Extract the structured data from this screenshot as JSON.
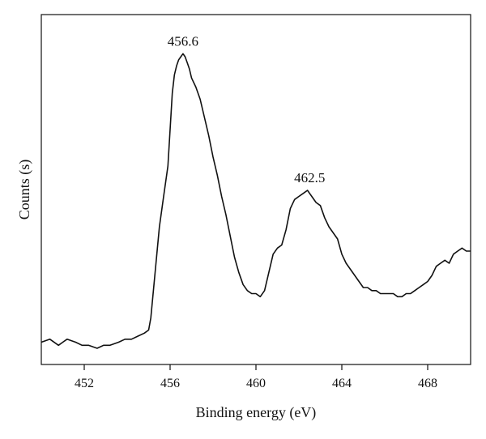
{
  "chart_data": {
    "type": "line",
    "title": "",
    "xlabel": "Binding energy (eV)",
    "ylabel": "Counts (s)",
    "xlim": [
      450,
      470
    ],
    "ylim": [
      0,
      100
    ],
    "x_ticks": [
      452,
      456,
      460,
      464,
      468
    ],
    "y_tick_labels_shown": false,
    "grid": false,
    "legend": "none",
    "line_color": "#111111",
    "annotations": [
      {
        "text": "456.6",
        "x": 456.6,
        "y": 97
      },
      {
        "text": "462.5",
        "x": 462.5,
        "y": 52
      }
    ],
    "series": [
      {
        "name": "",
        "x": [
          450.0,
          450.4,
          450.8,
          451.0,
          451.2,
          451.6,
          451.9,
          452.2,
          452.6,
          452.9,
          453.2,
          453.6,
          453.9,
          454.2,
          454.5,
          454.8,
          455.0,
          455.1,
          455.3,
          455.5,
          455.7,
          455.9,
          456.0,
          456.1,
          456.2,
          456.3,
          456.4,
          456.5,
          456.6,
          456.7,
          456.8,
          456.9,
          457.0,
          457.2,
          457.4,
          457.6,
          457.8,
          458.0,
          458.2,
          458.4,
          458.6,
          458.8,
          459.0,
          459.2,
          459.4,
          459.6,
          459.8,
          460.0,
          460.2,
          460.4,
          460.6,
          460.8,
          461.0,
          461.2,
          461.4,
          461.6,
          461.8,
          462.0,
          462.2,
          462.4,
          462.6,
          462.8,
          463.0,
          463.2,
          463.4,
          463.6,
          463.8,
          464.0,
          464.2,
          464.4,
          464.6,
          464.8,
          465.0,
          465.2,
          465.4,
          465.6,
          465.8,
          466.0,
          466.2,
          466.4,
          466.6,
          466.8,
          467.0,
          467.2,
          467.4,
          467.6,
          467.8,
          468.0,
          468.2,
          468.4,
          468.6,
          468.8,
          469.0,
          469.2,
          469.4,
          469.6,
          469.8,
          470.0
        ],
        "y": [
          2,
          3,
          1,
          2,
          3,
          2,
          1,
          1,
          0,
          1,
          1,
          2,
          3,
          3,
          4,
          5,
          6,
          10,
          25,
          40,
          50,
          60,
          72,
          84,
          90,
          93,
          95,
          96,
          97,
          96,
          94,
          92,
          89,
          86,
          82,
          76,
          70,
          63,
          57,
          50,
          44,
          37,
          30,
          25,
          21,
          19,
          18,
          18,
          17,
          19,
          25,
          31,
          33,
          34,
          39,
          46,
          49,
          50,
          51,
          52,
          50,
          48,
          47,
          43,
          40,
          38,
          36,
          31,
          28,
          26,
          24,
          22,
          20,
          20,
          19,
          19,
          18,
          18,
          18,
          18,
          17,
          17,
          18,
          18,
          19,
          20,
          21,
          22,
          24,
          27,
          28,
          29,
          28,
          31,
          32,
          33,
          32,
          32
        ]
      }
    ]
  }
}
